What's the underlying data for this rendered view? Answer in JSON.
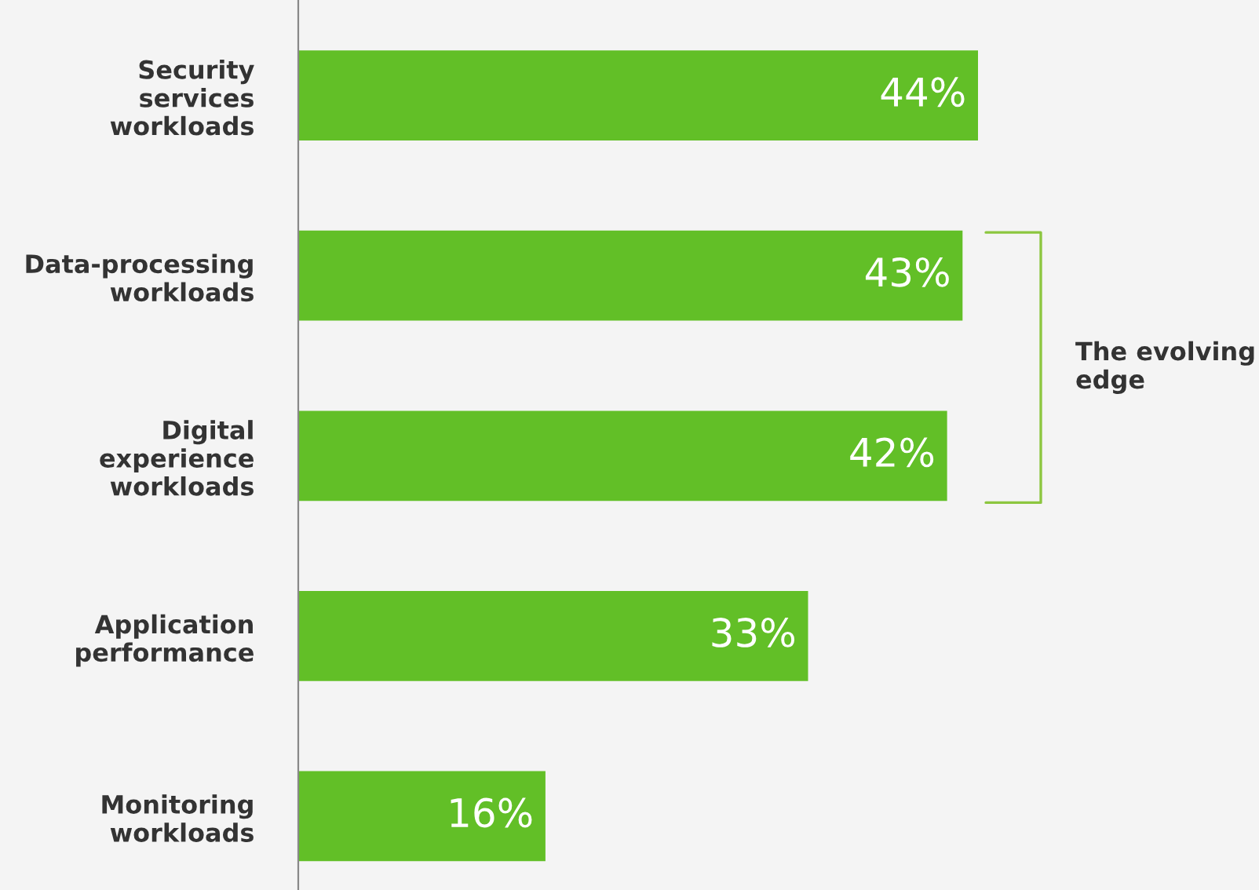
{
  "chart_data": {
    "type": "bar",
    "orientation": "horizontal",
    "categories": [
      "Security\nservices\nworkloads",
      "Data-processing\nworkloads",
      "Digital\nexperience\nworkloads",
      "Application\nperformance",
      "Monitoring\nworkloads"
    ],
    "values": [
      44,
      43,
      42,
      33,
      16
    ],
    "color": "#62bf27",
    "value_labels": [
      "44%",
      "43%",
      "42%",
      "33%",
      "16%"
    ],
    "annotations": [
      "The evolving\nedge"
    ],
    "grid": false,
    "legend": false
  }
}
